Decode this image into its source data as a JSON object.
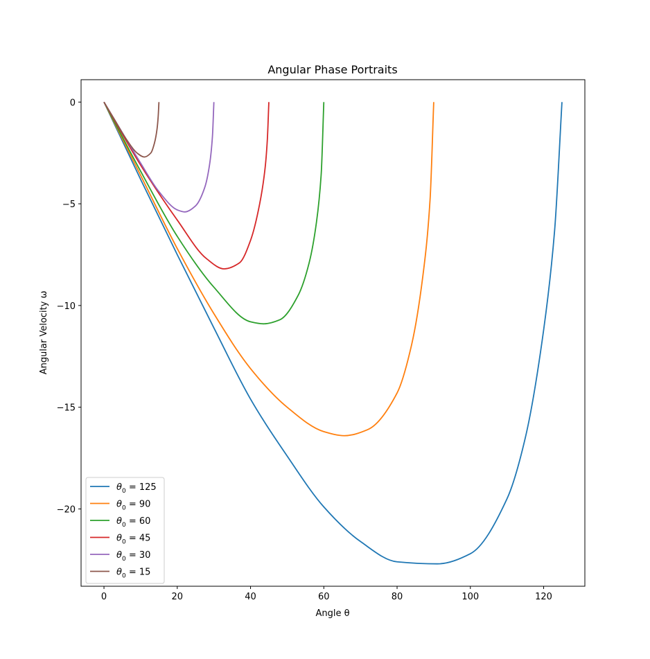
{
  "chart_data": {
    "type": "line",
    "title": "Angular Phase Portraits",
    "xlabel": "Angle θ",
    "ylabel": "Angular Velocity ω",
    "xlim": [
      -6.25,
      131.25
    ],
    "ylim": [
      -23.8,
      1.1
    ],
    "xticks": [
      0,
      20,
      40,
      60,
      80,
      100,
      120
    ],
    "yticks": [
      0,
      -5,
      -10,
      -15,
      -20
    ],
    "xtick_labels": [
      "0",
      "20",
      "40",
      "60",
      "80",
      "100",
      "120"
    ],
    "ytick_labels": [
      "0",
      "−5",
      "−10",
      "−15",
      "−20"
    ],
    "grid": false,
    "legend_position": "lower-left",
    "series": [
      {
        "name": "θ0 = 125",
        "legend_base": "θ",
        "legend_sub": "0",
        "legend_rest": " = 125",
        "color": "#1f77b4",
        "x": [
          0,
          10,
          20,
          30,
          40,
          50,
          60,
          70,
          80,
          91,
          100,
          110,
          115,
          120,
          123,
          125
        ],
        "y": [
          0,
          -3.8,
          -7.5,
          -11.1,
          -14.6,
          -17.4,
          -19.9,
          -21.6,
          -22.6,
          -22.7,
          -22.2,
          -19.5,
          -16.5,
          -11.2,
          -6.3,
          0
        ]
      },
      {
        "name": "θ0 = 90",
        "legend_base": "θ",
        "legend_sub": "0",
        "legend_rest": " = 90",
        "color": "#ff7f0e",
        "x": [
          0,
          10,
          20,
          30,
          40,
          50,
          60,
          65.6,
          72,
          80,
          84,
          87,
          89,
          90
        ],
        "y": [
          0,
          -3.6,
          -7.2,
          -10.4,
          -13.1,
          -15.0,
          -16.2,
          -16.4,
          -16.1,
          -14.3,
          -11.9,
          -8.6,
          -4.8,
          0
        ]
      },
      {
        "name": "θ0 = 60",
        "legend_base": "θ",
        "legend_sub": "0",
        "legend_rest": " = 60",
        "color": "#2ca02c",
        "x": [
          0,
          10,
          20,
          30,
          40,
          43.6,
          48,
          53,
          56,
          58,
          59.3,
          60
        ],
        "y": [
          0,
          -3.4,
          -6.6,
          -9.1,
          -10.8,
          -10.9,
          -10.7,
          -9.5,
          -7.9,
          -5.9,
          -3.5,
          0
        ]
      },
      {
        "name": "θ0 = 45",
        "legend_base": "θ",
        "legend_sub": "0",
        "legend_rest": " = 45",
        "color": "#d62728",
        "x": [
          0,
          10,
          20,
          28,
          32.8,
          37,
          40,
          42.5,
          44,
          44.6,
          45
        ],
        "y": [
          0,
          -3.1,
          -5.8,
          -7.7,
          -8.2,
          -7.9,
          -6.8,
          -5.0,
          -3.2,
          -1.8,
          0
        ]
      },
      {
        "name": "θ0 = 30",
        "legend_base": "θ",
        "legend_sub": "0",
        "legend_rest": " = 30",
        "color": "#9467bd",
        "x": [
          0,
          5,
          10,
          15,
          20,
          22,
          25,
          27.5,
          28.8,
          29.6,
          30
        ],
        "y": [
          0,
          -1.5,
          -3.0,
          -4.4,
          -5.3,
          -5.4,
          -5.1,
          -4.2,
          -3.1,
          -1.7,
          0
        ]
      },
      {
        "name": "θ0 = 15",
        "legend_base": "θ",
        "legend_sub": "0",
        "legend_rest": " = 15",
        "color": "#8c564b",
        "x": [
          0,
          3,
          6,
          9,
          11,
          12.8,
          13.8,
          14.5,
          14.8,
          15
        ],
        "y": [
          0,
          -0.9,
          -1.8,
          -2.5,
          -2.7,
          -2.5,
          -2.0,
          -1.3,
          -0.7,
          0
        ]
      }
    ]
  }
}
